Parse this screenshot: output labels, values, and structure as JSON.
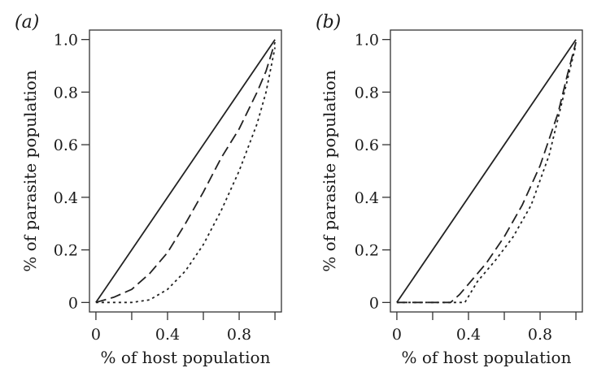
{
  "chart_data": [
    {
      "type": "line",
      "panel_label": "(a)",
      "xlabel": "% of host population",
      "ylabel": "% of parasite population",
      "xlim": [
        0,
        1
      ],
      "ylim": [
        0,
        1
      ],
      "x_ticks": [
        0,
        0.2,
        0.4,
        0.6,
        0.8,
        1.0
      ],
      "x_tick_labels": [
        "0",
        "",
        "0.4",
        "",
        "0.8",
        ""
      ],
      "y_ticks": [
        0,
        0.2,
        0.4,
        0.6,
        0.8,
        1.0
      ],
      "y_tick_labels": [
        "0",
        "0.2",
        "0.4",
        "0.6",
        "0.8",
        "1.0"
      ],
      "grid": false,
      "series": [
        {
          "style": "solid",
          "x": [
            0,
            1
          ],
          "y": [
            0,
            1
          ]
        },
        {
          "style": "dashed",
          "x": [
            0,
            0.1,
            0.2,
            0.3,
            0.4,
            0.5,
            0.6,
            0.7,
            0.8,
            0.9,
            0.95,
            1.0
          ],
          "y": [
            0,
            0.02,
            0.05,
            0.11,
            0.19,
            0.3,
            0.42,
            0.55,
            0.66,
            0.8,
            0.88,
            0.99
          ]
        },
        {
          "style": "dotted",
          "x": [
            0,
            0.1,
            0.2,
            0.3,
            0.4,
            0.5,
            0.6,
            0.7,
            0.8,
            0.9,
            0.95,
            1.0
          ],
          "y": [
            0,
            0.0,
            0.0,
            0.01,
            0.05,
            0.12,
            0.22,
            0.35,
            0.5,
            0.68,
            0.8,
            0.97
          ]
        }
      ]
    },
    {
      "type": "line",
      "panel_label": "(b)",
      "xlabel": "% of host population",
      "ylabel": "% of parasite population",
      "xlim": [
        0,
        1
      ],
      "ylim": [
        0,
        1
      ],
      "x_ticks": [
        0,
        0.2,
        0.4,
        0.6,
        0.8,
        1.0
      ],
      "x_tick_labels": [
        "0",
        "",
        "0.4",
        "",
        "0.8",
        ""
      ],
      "y_ticks": [
        0,
        0.2,
        0.4,
        0.6,
        0.8,
        1.0
      ],
      "y_tick_labels": [
        "0",
        "0.2",
        "0.4",
        "0.6",
        "0.8",
        "1.0"
      ],
      "grid": false,
      "series": [
        {
          "style": "solid",
          "x": [
            0,
            1
          ],
          "y": [
            0,
            1
          ]
        },
        {
          "style": "dashed",
          "x": [
            0,
            0.1,
            0.2,
            0.3,
            0.35,
            0.4,
            0.5,
            0.6,
            0.7,
            0.8,
            0.9,
            0.95,
            1.0
          ],
          "y": [
            0,
            0.0,
            0.0,
            0.0,
            0.03,
            0.07,
            0.15,
            0.25,
            0.37,
            0.52,
            0.72,
            0.86,
            0.99
          ]
        },
        {
          "style": "dotted",
          "x": [
            0,
            0.2,
            0.35,
            0.38,
            0.45,
            0.55,
            0.65,
            0.75,
            0.85,
            0.9,
            0.95,
            1.0
          ],
          "y": [
            0,
            0.0,
            0.0,
            0.0,
            0.08,
            0.16,
            0.25,
            0.37,
            0.56,
            0.7,
            0.84,
            0.98
          ]
        }
      ]
    }
  ]
}
